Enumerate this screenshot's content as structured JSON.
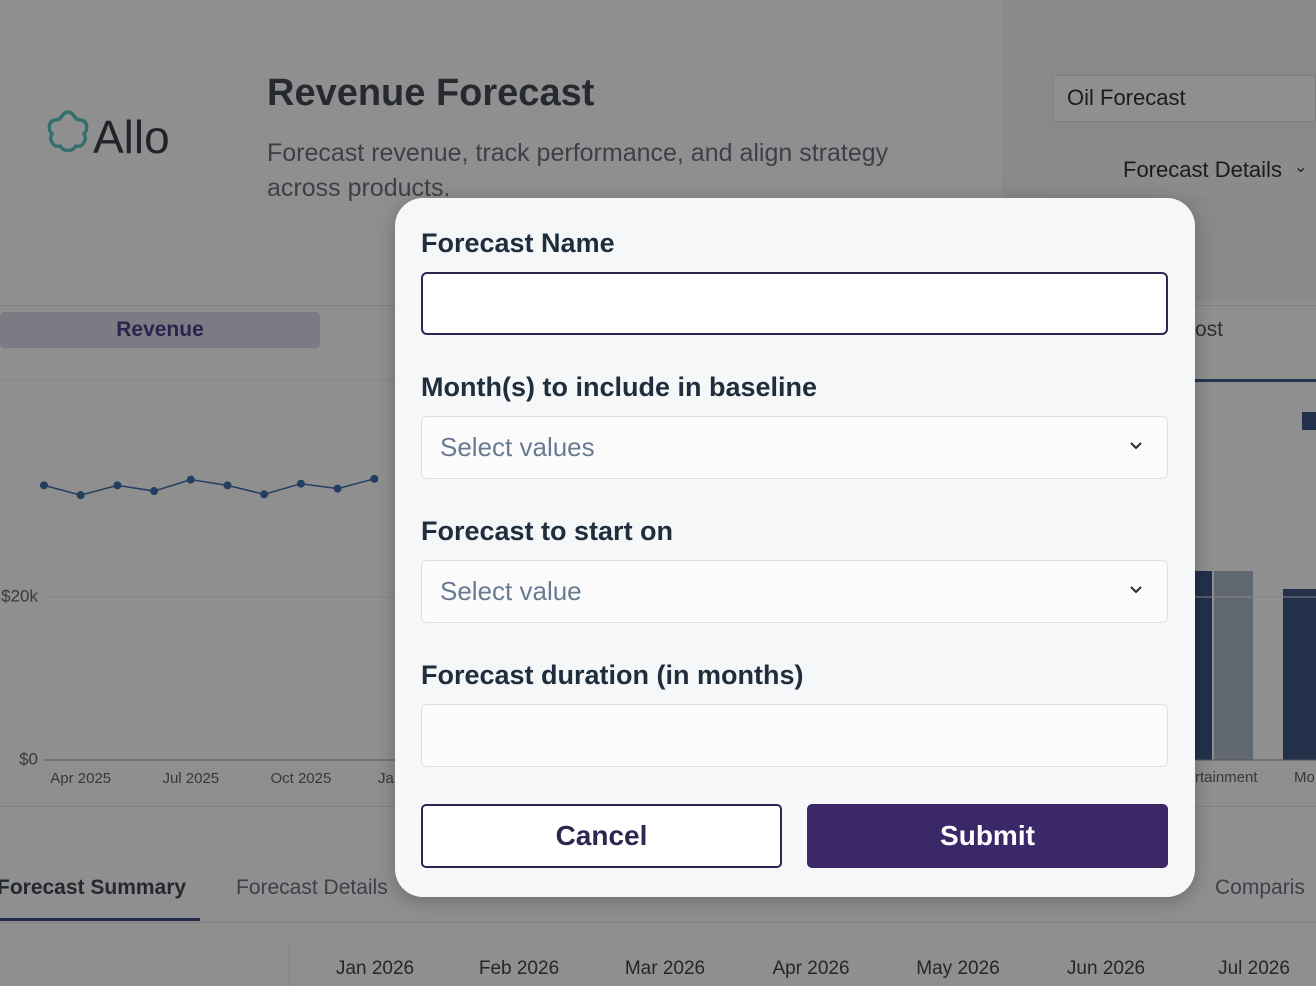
{
  "background": {
    "logo": "Allo",
    "title": "Revenue Forecast",
    "subtitle": "Forecast revenue, track performance, and align strategy across products.",
    "forecast_select": "Oil Forecast",
    "details_button": "Forecast Details",
    "chart_tab": "Revenue",
    "chart_tab_fragment": "ost",
    "chart": {
      "type": "line",
      "color": "#3f6fa8",
      "categories": [
        null,
        "Apr 2025",
        null,
        null,
        "Jul 2025",
        null,
        null,
        "Oct 2025",
        null,
        null
      ],
      "values": [
        33700,
        32500,
        33700,
        33000,
        34400,
        33700,
        32600,
        33900,
        33300,
        34500
      ],
      "ylim": [
        0,
        45000
      ],
      "yticks": [
        {
          "value": 0,
          "label": "$0"
        },
        {
          "value": 20000,
          "label": "$20k"
        }
      ],
      "grid": true
    },
    "x_fragment": "Ja",
    "bar_chart_fragments": [
      "rtainment",
      "Mo"
    ],
    "tabs": [
      "Forecast Summary",
      "Forecast Details",
      "Comparis"
    ],
    "table_columns": [
      "Jan 2026",
      "Feb 2026",
      "Mar 2026",
      "Apr 2026",
      "May 2026",
      "Jun 2026",
      "Jul 2026"
    ]
  },
  "modal": {
    "fields": [
      {
        "label": "Forecast Name"
      },
      {
        "label": "Month(s) to include in baseline",
        "placeholder": "Select values"
      },
      {
        "label": "Forecast to start on",
        "placeholder": "Select value"
      },
      {
        "label": "Forecast duration (in months)"
      }
    ],
    "buttons": {
      "cancel": "Cancel",
      "submit": "Submit"
    }
  }
}
